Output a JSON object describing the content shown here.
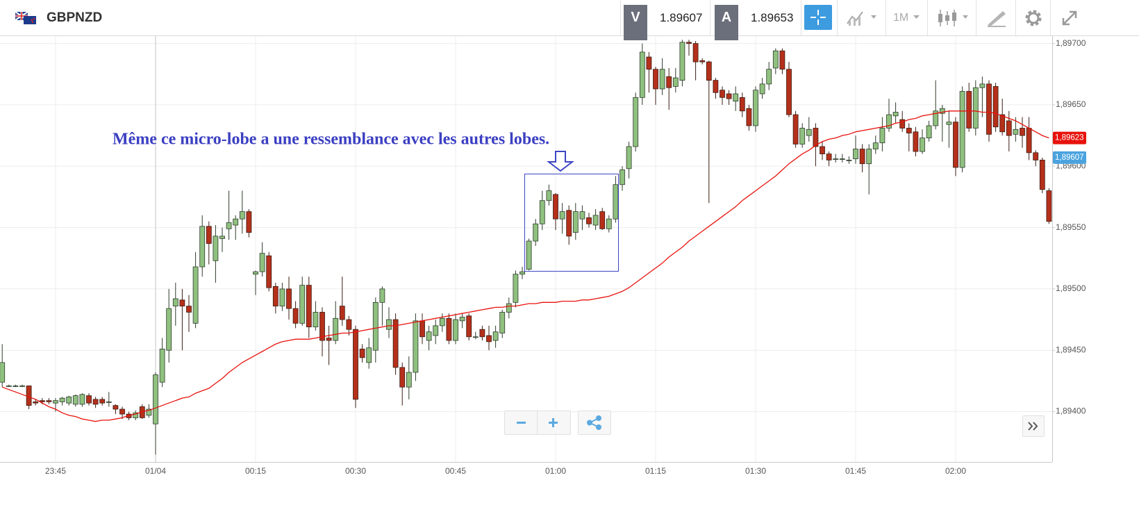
{
  "header": {
    "symbol": "GBPNZD",
    "bid_label": "V",
    "bid": "1.89607",
    "ask_label": "A",
    "ask": "1.89653",
    "timeframe": "1M"
  },
  "chart_data": {
    "type": "candlestick",
    "annotation": "Même ce micro-lobe a une ressemblance avec les autres lobes.",
    "categories": [
      null,
      null,
      null,
      null,
      null,
      null,
      null,
      null,
      "23:45",
      null,
      null,
      null,
      null,
      null,
      null,
      null,
      null,
      null,
      null,
      null,
      null,
      null,
      null,
      "01/04",
      null,
      null,
      null,
      null,
      null,
      null,
      null,
      null,
      null,
      null,
      null,
      null,
      null,
      null,
      "00:15",
      null,
      null,
      null,
      null,
      null,
      null,
      null,
      null,
      null,
      null,
      null,
      null,
      null,
      null,
      "00:30",
      null,
      null,
      null,
      null,
      null,
      null,
      null,
      null,
      null,
      null,
      null,
      null,
      null,
      null,
      "00:45",
      null,
      null,
      null,
      null,
      null,
      null,
      null,
      null,
      null,
      null,
      null,
      null,
      null,
      null,
      "01:00",
      null,
      null,
      null,
      null,
      null,
      null,
      null,
      null,
      null,
      null,
      null,
      null,
      null,
      null,
      "01:15",
      null,
      null,
      null,
      null,
      null,
      null,
      null,
      null,
      null,
      null,
      null,
      null,
      null,
      null,
      "01:30",
      null,
      null,
      null,
      null,
      null,
      null,
      null,
      null,
      null,
      null,
      null,
      null,
      null,
      null,
      "01:45",
      null,
      null,
      null,
      null,
      null,
      null,
      null,
      null,
      null,
      null,
      null,
      null,
      null,
      null,
      "02:00",
      null,
      null,
      null,
      null,
      null,
      null,
      null,
      null,
      null,
      null,
      null,
      null,
      null,
      null
    ],
    "open": [
      1.89424,
      1.89421,
      1.89421,
      1.89421,
      1.89421,
      1.89408,
      1.89409,
      1.89409,
      1.89407,
      1.89408,
      1.89407,
      1.89406,
      1.89406,
      1.89413,
      1.8941,
      1.8941,
      1.89408,
      1.89405,
      1.89402,
      1.89398,
      1.89395,
      1.89404,
      1.89397,
      1.8939,
      1.89424,
      1.8945,
      1.89486,
      1.89491,
      1.89486,
      1.89472,
      1.89518,
      1.89551,
      1.89523,
      1.89541,
      1.89549,
      1.89552,
      1.89557,
      1.89563,
      1.89512,
      1.89514,
      1.89527,
      1.89502,
      1.89486,
      1.895,
      1.89484,
      1.89472,
      1.89503,
      1.89469,
      1.89481,
      1.8946,
      1.89458,
      1.89486,
      1.89475,
      1.89467,
      1.89451,
      1.8944,
      1.8945,
      1.89489,
      1.89467,
      1.89475,
      1.89436,
      1.8942,
      1.89432,
      1.89474,
      1.89458,
      1.89462,
      1.8947,
      1.89476,
      1.89458,
      1.89474,
      1.89478,
      1.89461,
      1.89467,
      1.89462,
      1.89458,
      1.89464,
      1.89481,
      1.89489,
      1.89512,
      1.89516,
      1.89539,
      1.89553,
      1.89572,
      1.89577,
      1.89557,
      1.89564,
      1.89546,
      1.89557,
      1.89558,
      1.89552,
      1.89563,
      1.89549,
      1.89557,
      1.89585,
      1.89598,
      1.89616,
      1.89656,
      1.89689,
      1.89679,
      1.89663,
      1.89673,
      1.89665,
      1.8967,
      1.89701,
      1.897,
      1.89686,
      1.89685,
      1.8967,
      1.89662,
      1.89659,
      1.89653,
      1.89656,
      1.89647,
      1.89633,
      1.89659,
      1.89667,
      1.8968,
      1.89694,
      1.89679,
      1.89642,
      1.89618,
      1.89625,
      1.89631,
      1.89616,
      1.8961,
      1.89606,
      1.89606,
      1.89605,
      1.89606,
      1.89614,
      1.89602,
      1.89614,
      1.89619,
      1.89631,
      1.89641,
      1.89638,
      1.89631,
      1.89628,
      1.89612,
      1.89623,
      1.89633,
      1.89643,
      1.89634,
      1.89636,
      1.89599,
      1.89661,
      1.89631,
      1.89664,
      1.89667,
      1.89665,
      1.89642,
      1.89637,
      1.89626,
      1.89631,
      1.89631,
      1.89611,
      1.89605,
      1.8958
    ],
    "high": [
      1.89455,
      1.89422,
      1.89422,
      1.89422,
      1.89421,
      1.8941,
      1.89411,
      1.89411,
      1.89411,
      1.89412,
      1.89413,
      1.89414,
      1.89415,
      1.89415,
      1.89412,
      1.89412,
      1.89416,
      1.89406,
      1.89404,
      1.894,
      1.89401,
      1.89406,
      1.89406,
      1.89432,
      1.8946,
      1.895,
      1.89505,
      1.895,
      1.89495,
      1.8953,
      1.8956,
      1.89555,
      1.89552,
      1.8955,
      1.8958,
      1.8956,
      1.8958,
      1.89565,
      1.89515,
      1.89538,
      1.8953,
      1.89505,
      1.89505,
      1.8951,
      1.8949,
      1.8951,
      1.8951,
      1.8949,
      1.89485,
      1.8947,
      1.8949,
      1.8951,
      1.89478,
      1.8947,
      1.89455,
      1.8946,
      1.89493,
      1.89502,
      1.89485,
      1.8948,
      1.8944,
      1.89445,
      1.8948,
      1.8948,
      1.8947,
      1.89475,
      1.8948,
      1.8948,
      1.8948,
      1.8948,
      1.8948,
      1.89465,
      1.8947,
      1.8947,
      1.8947,
      1.89483,
      1.89493,
      1.89515,
      1.89518,
      1.89541,
      1.89557,
      1.8958,
      1.89585,
      1.89578,
      1.8957,
      1.89568,
      1.8957,
      1.89568,
      1.89562,
      1.89565,
      1.89566,
      1.8956,
      1.89592,
      1.896,
      1.8962,
      1.8966,
      1.897,
      1.89693,
      1.89681,
      1.89688,
      1.8968,
      1.8968,
      1.89703,
      1.89703,
      1.89702,
      1.89688,
      1.89686,
      1.89672,
      1.89665,
      1.89662,
      1.89665,
      1.8966,
      1.8965,
      1.89665,
      1.89672,
      1.89685,
      1.89696,
      1.89696,
      1.89685,
      1.89645,
      1.89635,
      1.8964,
      1.89635,
      1.8962,
      1.89612,
      1.8961,
      1.8961,
      1.89608,
      1.89625,
      1.89618,
      1.89618,
      1.89625,
      1.8964,
      1.89655,
      1.89652,
      1.89645,
      1.89635,
      1.89632,
      1.8963,
      1.89637,
      1.8967,
      1.8965,
      1.89645,
      1.8964,
      1.89665,
      1.89668,
      1.8967,
      1.89673,
      1.8967,
      1.89668,
      1.89655,
      1.89645,
      1.8964,
      1.8964,
      1.8964,
      1.89613,
      1.89607,
      1.89582
    ],
    "low": [
      1.8942,
      1.8942,
      1.8942,
      1.8942,
      1.89402,
      1.89405,
      1.89406,
      1.89406,
      1.894,
      1.89405,
      1.89405,
      1.89404,
      1.89404,
      1.89405,
      1.89403,
      1.89405,
      1.89404,
      1.89398,
      1.89394,
      1.89393,
      1.89393,
      1.89394,
      1.89395,
      1.89365,
      1.8942,
      1.8944,
      1.8947,
      1.8945,
      1.89465,
      1.89468,
      1.8951,
      1.8952,
      1.89505,
      1.8953,
      1.8954,
      1.8954,
      1.89545,
      1.89542,
      1.89495,
      1.8951,
      1.89498,
      1.8948,
      1.89482,
      1.89475,
      1.89468,
      1.8947,
      1.8946,
      1.89466,
      1.89445,
      1.89438,
      1.89455,
      1.8947,
      1.89462,
      1.89403,
      1.8944,
      1.89435,
      1.8944,
      1.8947,
      1.8946,
      1.8943,
      1.89405,
      1.8941,
      1.89425,
      1.89455,
      1.8945,
      1.89455,
      1.89465,
      1.89455,
      1.89455,
      1.89468,
      1.89458,
      1.89459,
      1.89458,
      1.8945,
      1.89452,
      1.8946,
      1.89476,
      1.89485,
      1.89508,
      1.89515,
      1.89535,
      1.89548,
      1.89568,
      1.89548,
      1.89545,
      1.89536,
      1.8954,
      1.89548,
      1.8955,
      1.89548,
      1.89548,
      1.89546,
      1.89554,
      1.8958,
      1.8959,
      1.89612,
      1.8965,
      1.8966,
      1.8965,
      1.89658,
      1.89646,
      1.8966,
      1.89665,
      1.8969,
      1.8967,
      1.89683,
      1.8957,
      1.89655,
      1.8965,
      1.8965,
      1.89645,
      1.8964,
      1.89629,
      1.89628,
      1.89655,
      1.89662,
      1.89675,
      1.89675,
      1.8964,
      1.89615,
      1.89615,
      1.8962,
      1.896,
      1.89605,
      1.896,
      1.89603,
      1.89603,
      1.89602,
      1.89602,
      1.89595,
      1.89577,
      1.8961,
      1.89612,
      1.89628,
      1.89635,
      1.89628,
      1.89612,
      1.89608,
      1.8961,
      1.8962,
      1.8963,
      1.8962,
      1.89615,
      1.89592,
      1.89595,
      1.89628,
      1.89625,
      1.8964,
      1.8962,
      1.89628,
      1.89625,
      1.89612,
      1.8962,
      1.89615,
      1.89605,
      1.896,
      1.89578,
      1.89553
    ],
    "close": [
      1.8944,
      1.89421,
      1.89421,
      1.89421,
      1.89405,
      1.89407,
      1.89408,
      1.89408,
      1.89409,
      1.89411,
      1.89412,
      1.89413,
      1.89414,
      1.89407,
      1.89406,
      1.89407,
      1.89408,
      1.89402,
      1.89398,
      1.89395,
      1.89399,
      1.89395,
      1.89402,
      1.8943,
      1.89451,
      1.89484,
      1.89492,
      1.89486,
      1.89481,
      1.89518,
      1.89551,
      1.89537,
      1.89543,
      1.89543,
      1.89554,
      1.89557,
      1.89563,
      1.89546,
      1.89514,
      1.89529,
      1.89501,
      1.89486,
      1.895,
      1.89484,
      1.89472,
      1.89503,
      1.89469,
      1.89481,
      1.89458,
      1.89458,
      1.89476,
      1.89475,
      1.89467,
      1.8941,
      1.89444,
      1.89452,
      1.89489,
      1.895,
      1.89475,
      1.89436,
      1.8942,
      1.89432,
      1.89474,
      1.89461,
      1.89465,
      1.8947,
      1.89476,
      1.89458,
      1.89475,
      1.89477,
      1.89461,
      1.89461,
      1.89461,
      1.89457,
      1.89465,
      1.89481,
      1.89488,
      1.89512,
      1.89514,
      1.89539,
      1.89553,
      1.89572,
      1.8958,
      1.89557,
      1.89563,
      1.89543,
      1.89563,
      1.89563,
      1.89553,
      1.8956,
      1.89549,
      1.89557,
      1.89585,
      1.89597,
      1.89616,
      1.89656,
      1.89693,
      1.89679,
      1.89663,
      1.89679,
      1.89664,
      1.89672,
      1.89701,
      1.897,
      1.89685,
      1.89685,
      1.8967,
      1.8966,
      1.89656,
      1.89655,
      1.89659,
      1.89645,
      1.89633,
      1.89662,
      1.89667,
      1.89679,
      1.89694,
      1.89679,
      1.89642,
      1.89618,
      1.89631,
      1.8963,
      1.89616,
      1.8961,
      1.89605,
      1.89606,
      1.89606,
      1.89605,
      1.89614,
      1.89602,
      1.89614,
      1.89619,
      1.89631,
      1.89642,
      1.89644,
      1.89631,
      1.89627,
      1.89612,
      1.89623,
      1.89633,
      1.89645,
      1.89647,
      1.89636,
      1.89599,
      1.89661,
      1.89631,
      1.89664,
      1.89667,
      1.89626,
      1.89632,
      1.89628,
      1.89625,
      1.8963,
      1.89625,
      1.89611,
      1.89605,
      1.89581,
      1.89555
    ],
    "up_color": "#8fc07f",
    "down_color": "#b5301b",
    "moving_average": {
      "color": "#e8120c",
      "values": [
        1.8942,
        1.89418,
        1.89416,
        1.89414,
        1.89412,
        1.8941,
        1.89407,
        1.89404,
        1.89402,
        1.89399,
        1.89397,
        1.89396,
        1.89394,
        1.89393,
        1.89392,
        1.89393,
        1.89393,
        1.89394,
        1.89395,
        1.89397,
        1.89398,
        1.894,
        1.89401,
        1.89403,
        1.89405,
        1.89407,
        1.89409,
        1.89411,
        1.89412,
        1.89415,
        1.89417,
        1.89419,
        1.89423,
        1.89427,
        1.89432,
        1.89436,
        1.8944,
        1.89443,
        1.89446,
        1.89449,
        1.89452,
        1.89455,
        1.89457,
        1.89458,
        1.89459,
        1.89459,
        1.89459,
        1.8946,
        1.89461,
        1.89462,
        1.89463,
        1.89464,
        1.89464,
        1.89465,
        1.89466,
        1.89467,
        1.89468,
        1.89469,
        1.8947,
        1.8947,
        1.89471,
        1.89472,
        1.89473,
        1.89474,
        1.89475,
        1.89476,
        1.89477,
        1.89478,
        1.89479,
        1.8948,
        1.89481,
        1.89482,
        1.89483,
        1.89484,
        1.89485,
        1.89485,
        1.89486,
        1.89486,
        1.89487,
        1.89488,
        1.89488,
        1.89489,
        1.89489,
        1.89489,
        1.8949,
        1.8949,
        1.8949,
        1.89491,
        1.89491,
        1.89492,
        1.89493,
        1.89494,
        1.89496,
        1.89498,
        1.89501,
        1.89505,
        1.89509,
        1.89513,
        1.89517,
        1.89521,
        1.89526,
        1.8953,
        1.89534,
        1.89539,
        1.89543,
        1.89547,
        1.89551,
        1.89555,
        1.89559,
        1.89563,
        1.89567,
        1.89572,
        1.89576,
        1.8958,
        1.89584,
        1.89588,
        1.89592,
        1.89597,
        1.89602,
        1.89606,
        1.8961,
        1.89613,
        1.89617,
        1.8962,
        1.89622,
        1.89623,
        1.89625,
        1.89626,
        1.89628,
        1.89629,
        1.8963,
        1.89631,
        1.89632,
        1.89633,
        1.89635,
        1.89636,
        1.89638,
        1.89639,
        1.89641,
        1.89642,
        1.89643,
        1.89644,
        1.89645,
        1.89645,
        1.89645,
        1.89645,
        1.89645,
        1.89644,
        1.89644,
        1.89643,
        1.89641,
        1.89639,
        1.89637,
        1.89634,
        1.89631,
        1.89628,
        1.89625,
        1.89623
      ]
    },
    "price_markers": [
      {
        "value": 1.89623,
        "label": "1,89623",
        "color": "#e8120c"
      },
      {
        "value": 1.89607,
        "label": "1,89607",
        "color": "#4aa3df"
      }
    ],
    "ylim": [
      1.89359,
      1.89706
    ],
    "yticks": [
      {
        "value": 1.894,
        "label": "1,89400"
      },
      {
        "value": 1.8945,
        "label": "1,89450"
      },
      {
        "value": 1.895,
        "label": "1,89500"
      },
      {
        "value": 1.8955,
        "label": "1,89550"
      },
      {
        "value": 1.896,
        "label": "1,89600"
      },
      {
        "value": 1.8965,
        "label": "1,89650"
      },
      {
        "value": 1.897,
        "label": "1,89700"
      }
    ],
    "grid": true
  }
}
